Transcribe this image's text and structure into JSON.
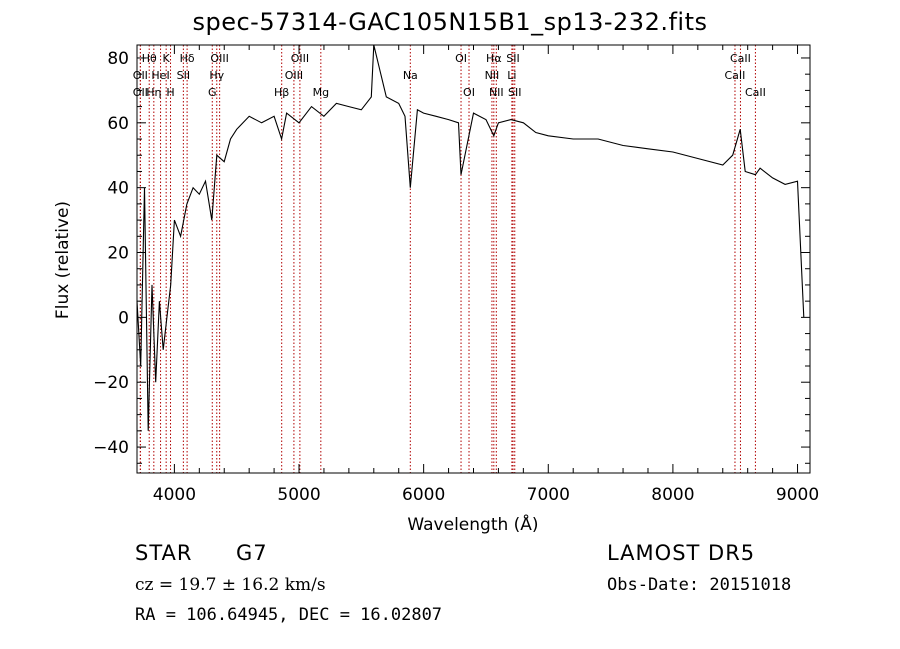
{
  "chart_data": {
    "type": "line",
    "title": "spec-57314-GAC105N15B1_sp13-232.fits",
    "xlabel": "Wavelength (Å)",
    "ylabel": "Flux (relative)",
    "xlim": [
      3700,
      9100
    ],
    "ylim": [
      -48,
      84
    ],
    "xticks": [
      4000,
      5000,
      6000,
      7000,
      8000,
      9000
    ],
    "yticks": [
      -40,
      -20,
      0,
      20,
      40,
      60,
      80
    ],
    "grid": false,
    "line_color": "#000000",
    "marker_color": "#b00000",
    "series": [
      {
        "x": [
          3700,
          3730,
          3760,
          3790,
          3820,
          3850,
          3880,
          3910,
          3940,
          3970,
          4000,
          4050,
          4100,
          4150,
          4200,
          4250,
          4300,
          4340,
          4400,
          4450,
          4500,
          4600,
          4700,
          4800,
          4860,
          4900,
          5000,
          5100,
          5200,
          5300,
          5400,
          5500,
          5580,
          5600,
          5700,
          5800,
          5850,
          5893,
          5950,
          6000,
          6100,
          6200,
          6280,
          6300,
          6400,
          6500,
          6563,
          6600,
          6700,
          6800,
          6900,
          7000,
          7200,
          7400,
          7600,
          7800,
          8000,
          8200,
          8400,
          8480,
          8540,
          8580,
          8662,
          8700,
          8800,
          8900,
          9000,
          9050
        ],
        "values": [
          5,
          -15,
          40,
          -35,
          10,
          -20,
          5,
          -10,
          0,
          10,
          30,
          25,
          35,
          40,
          38,
          42,
          30,
          50,
          48,
          55,
          58,
          62,
          60,
          62,
          55,
          63,
          60,
          65,
          62,
          66,
          65,
          64,
          68,
          84,
          68,
          66,
          62,
          40,
          64,
          63,
          62,
          61,
          60,
          44,
          63,
          61,
          56,
          60,
          61,
          60,
          57,
          56,
          55,
          55,
          53,
          52,
          51,
          49,
          47,
          50,
          58,
          45,
          44,
          46,
          43,
          41,
          42,
          0
        ]
      }
    ],
    "line_markers": [
      {
        "label": "Hθ",
        "x": 3798,
        "row": 1
      },
      {
        "label": "OII",
        "x": 3727,
        "row": 2
      },
      {
        "label": "OII",
        "x": 3727,
        "row": 3
      },
      {
        "label": "Hη",
        "x": 3835,
        "row": 3
      },
      {
        "label": "HeI",
        "x": 3889,
        "row": 2
      },
      {
        "label": "K",
        "x": 3934,
        "row": 1
      },
      {
        "label": "H",
        "x": 3969,
        "row": 3
      },
      {
        "label": "Hδ",
        "x": 4102,
        "row": 1
      },
      {
        "label": "SII",
        "x": 4072,
        "row": 2
      },
      {
        "label": "OIII",
        "x": 4363,
        "row": 1
      },
      {
        "label": "Hγ",
        "x": 4340,
        "row": 2
      },
      {
        "label": "G",
        "x": 4304,
        "row": 3
      },
      {
        "label": "Hβ",
        "x": 4861,
        "row": 3
      },
      {
        "label": "OIII",
        "x": 5007,
        "row": 1
      },
      {
        "label": "OIII",
        "x": 4959,
        "row": 2
      },
      {
        "label": "Mg",
        "x": 5175,
        "row": 3
      },
      {
        "label": "Na",
        "x": 5893,
        "row": 2
      },
      {
        "label": "OI",
        "x": 6300,
        "row": 1
      },
      {
        "label": "OI",
        "x": 6364,
        "row": 3
      },
      {
        "label": "Hα",
        "x": 6563,
        "row": 1
      },
      {
        "label": "NII",
        "x": 6548,
        "row": 2
      },
      {
        "label": "NII",
        "x": 6583,
        "row": 3
      },
      {
        "label": "SII",
        "x": 6717,
        "row": 1
      },
      {
        "label": "Li",
        "x": 6708,
        "row": 2
      },
      {
        "label": "SII",
        "x": 6731,
        "row": 3
      },
      {
        "label": "CaII",
        "x": 8542,
        "row": 1
      },
      {
        "label": "CaII",
        "x": 8498,
        "row": 2
      },
      {
        "label": "CaII",
        "x": 8662,
        "row": 3
      }
    ]
  },
  "info": {
    "obj_class": "STAR",
    "subclass": "G7",
    "survey": "LAMOST DR5",
    "cz": "cz = 19.7 ± 16.2 km/s",
    "obs_date": "Obs-Date: 20151018",
    "coords": "RA = 106.64945, DEC =  16.02807"
  }
}
